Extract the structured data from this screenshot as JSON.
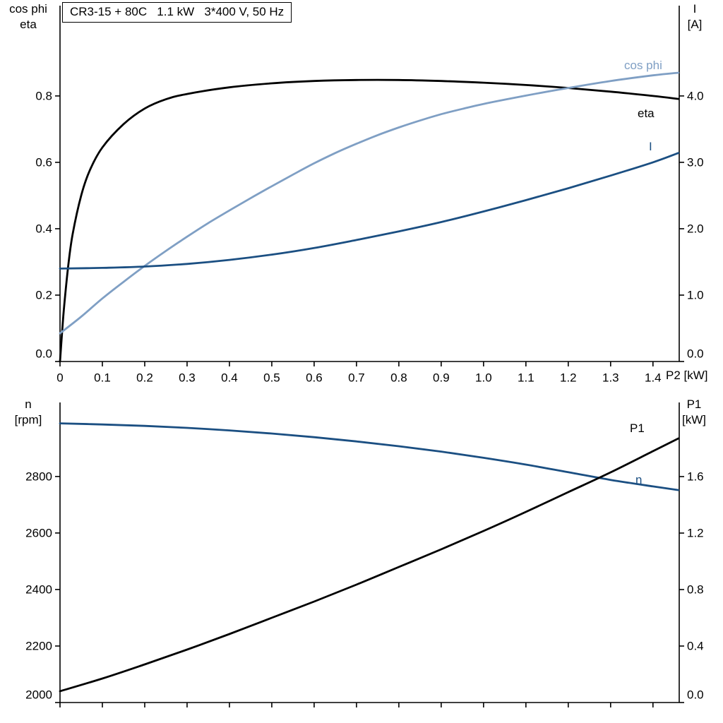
{
  "title_box": "CR3-15 + 80C   1.1 kW   3*400 V, 50 Hz",
  "labels": {
    "top_left_1": "cos phi",
    "top_left_2": "eta",
    "top_right_1": "I",
    "top_right_2": "[A]",
    "bottom_left_1": "n",
    "bottom_left_2": "[rpm]",
    "bottom_right_1": "P1",
    "bottom_right_2": "[kW]",
    "x_axis": "P2 [kW]",
    "curve_cos_phi": "cos phi",
    "curve_eta": "eta",
    "curve_I": "I",
    "curve_P1": "P1",
    "curve_n": "n"
  },
  "colors": {
    "black": "#000000",
    "dark_blue": "#1b4f82",
    "light_blue": "#7f9fc4"
  },
  "chart_data": [
    {
      "type": "line",
      "title": "CR3-15 + 80C 1.1 kW 3*400 V, 50 Hz",
      "xlabel": "P2 [kW]",
      "xlim": [
        0,
        1.462
      ],
      "x_ticks": [
        0,
        0.1,
        0.2,
        0.3,
        0.4,
        0.5,
        0.6,
        0.7,
        0.8,
        0.9,
        1.0,
        1.1,
        1.2,
        1.3,
        1.4
      ],
      "x_tick_labels": [
        "0",
        "0.1",
        "0.2",
        "0.3",
        "0.4",
        "0.5",
        "0.6",
        "0.7",
        "0.8",
        "0.9",
        "1.0",
        "1.1",
        "1.2",
        "1.3",
        "1.4"
      ],
      "left_axis": {
        "label": "cos phi / eta",
        "lim": [
          0,
          1.072
        ],
        "ticks": [
          0,
          0.2,
          0.4,
          0.6,
          0.8
        ],
        "tick_labels": [
          "0.0",
          "0.2",
          "0.4",
          "0.6",
          "0.8"
        ]
      },
      "right_axis": {
        "label": "I [A]",
        "lim": [
          0,
          5.36
        ],
        "ticks": [
          0,
          1,
          2,
          3,
          4
        ],
        "tick_labels": [
          "0.0",
          "1.0",
          "2.0",
          "3.0",
          "4.0"
        ]
      },
      "series": [
        {
          "name": "eta",
          "axis": "left",
          "color": "black",
          "points": [
            [
              0,
              0
            ],
            [
              0.005,
              0.09
            ],
            [
              0.01,
              0.17
            ],
            [
              0.02,
              0.295
            ],
            [
              0.03,
              0.385
            ],
            [
              0.05,
              0.5
            ],
            [
              0.07,
              0.575
            ],
            [
              0.1,
              0.645
            ],
            [
              0.15,
              0.715
            ],
            [
              0.2,
              0.762
            ],
            [
              0.25,
              0.79
            ],
            [
              0.3,
              0.806
            ],
            [
              0.4,
              0.826
            ],
            [
              0.5,
              0.838
            ],
            [
              0.6,
              0.845
            ],
            [
              0.7,
              0.848
            ],
            [
              0.8,
              0.848
            ],
            [
              0.9,
              0.845
            ],
            [
              1.0,
              0.84
            ],
            [
              1.1,
              0.833
            ],
            [
              1.2,
              0.824
            ],
            [
              1.3,
              0.813
            ],
            [
              1.4,
              0.8
            ],
            [
              1.46,
              0.791
            ]
          ]
        },
        {
          "name": "cos-phi",
          "axis": "left",
          "color": "light_blue",
          "points": [
            [
              0,
              0.085
            ],
            [
              0.05,
              0.135
            ],
            [
              0.1,
              0.19
            ],
            [
              0.15,
              0.24
            ],
            [
              0.2,
              0.288
            ],
            [
              0.25,
              0.333
            ],
            [
              0.3,
              0.376
            ],
            [
              0.35,
              0.417
            ],
            [
              0.4,
              0.455
            ],
            [
              0.45,
              0.492
            ],
            [
              0.5,
              0.528
            ],
            [
              0.55,
              0.563
            ],
            [
              0.6,
              0.597
            ],
            [
              0.65,
              0.628
            ],
            [
              0.7,
              0.656
            ],
            [
              0.75,
              0.682
            ],
            [
              0.8,
              0.705
            ],
            [
              0.85,
              0.726
            ],
            [
              0.9,
              0.745
            ],
            [
              0.95,
              0.761
            ],
            [
              1.0,
              0.776
            ],
            [
              1.1,
              0.801
            ],
            [
              1.2,
              0.824
            ],
            [
              1.3,
              0.845
            ],
            [
              1.4,
              0.862
            ],
            [
              1.46,
              0.87
            ]
          ]
        },
        {
          "name": "I",
          "axis": "right",
          "color": "dark_blue",
          "points": [
            [
              0,
              1.4
            ],
            [
              0.1,
              1.41
            ],
            [
              0.2,
              1.43
            ],
            [
              0.3,
              1.47
            ],
            [
              0.4,
              1.53
            ],
            [
              0.5,
              1.61
            ],
            [
              0.6,
              1.71
            ],
            [
              0.7,
              1.83
            ],
            [
              0.8,
              1.96
            ],
            [
              0.9,
              2.1
            ],
            [
              1.0,
              2.26
            ],
            [
              1.1,
              2.43
            ],
            [
              1.2,
              2.61
            ],
            [
              1.3,
              2.8
            ],
            [
              1.4,
              3.0
            ],
            [
              1.46,
              3.14
            ]
          ]
        }
      ]
    },
    {
      "type": "line",
      "xlabel": "P2 [kW]",
      "xlim": [
        0,
        1.462
      ],
      "x_ticks": [
        0,
        0.1,
        0.2,
        0.3,
        0.4,
        0.5,
        0.6,
        0.7,
        0.8,
        0.9,
        1.0,
        1.1,
        1.2,
        1.3,
        1.4
      ],
      "left_axis": {
        "label": "n [rpm]",
        "lim": [
          2000,
          3062
        ],
        "ticks": [
          2000,
          2200,
          2400,
          2600,
          2800
        ],
        "tick_labels": [
          "2000",
          "2200",
          "2400",
          "2600",
          "2800"
        ]
      },
      "right_axis": {
        "label": "P1 [kW]",
        "lim": [
          0,
          2.125
        ],
        "ticks": [
          0,
          0.4,
          0.8,
          1.2,
          1.6
        ],
        "tick_labels": [
          "0.0",
          "0.4",
          "0.8",
          "1.2",
          "1.6"
        ]
      },
      "series": [
        {
          "name": "n",
          "axis": "left",
          "color": "dark_blue",
          "points": [
            [
              0,
              2988
            ],
            [
              0.1,
              2984
            ],
            [
              0.2,
              2979
            ],
            [
              0.3,
              2972
            ],
            [
              0.4,
              2963
            ],
            [
              0.5,
              2952
            ],
            [
              0.6,
              2939
            ],
            [
              0.7,
              2924
            ],
            [
              0.8,
              2907
            ],
            [
              0.9,
              2888
            ],
            [
              1.0,
              2866
            ],
            [
              1.1,
              2842
            ],
            [
              1.2,
              2815
            ],
            [
              1.3,
              2788
            ],
            [
              1.4,
              2765
            ],
            [
              1.46,
              2752
            ]
          ]
        },
        {
          "name": "P1",
          "axis": "right",
          "color": "black",
          "points": [
            [
              0,
              0.08
            ],
            [
              0.1,
              0.17
            ],
            [
              0.2,
              0.27
            ],
            [
              0.3,
              0.375
            ],
            [
              0.4,
              0.485
            ],
            [
              0.5,
              0.6
            ],
            [
              0.6,
              0.715
            ],
            [
              0.7,
              0.835
            ],
            [
              0.8,
              0.96
            ],
            [
              0.9,
              1.085
            ],
            [
              1.0,
              1.215
            ],
            [
              1.1,
              1.35
            ],
            [
              1.2,
              1.49
            ],
            [
              1.3,
              1.63
            ],
            [
              1.4,
              1.78
            ],
            [
              1.46,
              1.87
            ]
          ]
        }
      ]
    }
  ]
}
